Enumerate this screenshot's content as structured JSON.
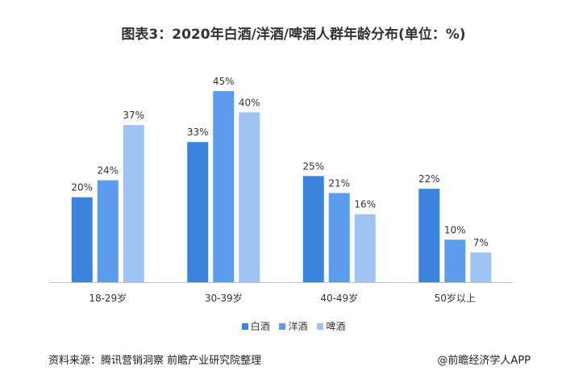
{
  "colors": {
    "baijiu": "#3d83de",
    "yangjiu": "#5d9cec",
    "pijiu": "#9fc3f2"
  },
  "chart_data": {
    "type": "bar",
    "title": "图表3：2020年白酒/洋酒/啤酒人群年龄分布(单位：%)",
    "categories": [
      "18-29岁",
      "30-39岁",
      "40-49岁",
      "50岁以上"
    ],
    "series": [
      {
        "name": "白酒",
        "values": [
          20,
          33,
          25,
          22
        ],
        "labels": [
          "20%",
          "33%",
          "25%",
          "22%"
        ]
      },
      {
        "name": "洋酒",
        "values": [
          24,
          45,
          21,
          10
        ],
        "labels": [
          "24%",
          "45%",
          "21%",
          "10%"
        ]
      },
      {
        "name": "啤酒",
        "values": [
          37,
          40,
          16,
          7
        ],
        "labels": [
          "37%",
          "40%",
          "16%",
          "7%"
        ]
      }
    ],
    "ylim": [
      0,
      45
    ],
    "grid": false,
    "legend": "bottom"
  },
  "footer": {
    "source": "资料来源：腾讯营销洞察 前瞻产业研究院整理",
    "brand": "@前瞻经济学人APP"
  }
}
